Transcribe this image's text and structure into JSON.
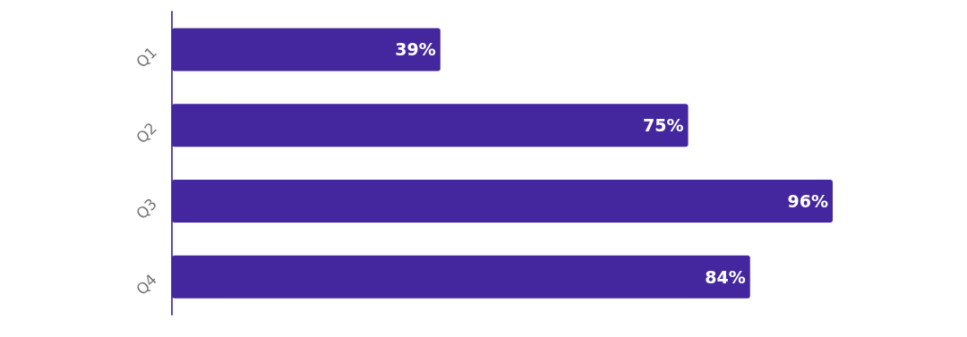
{
  "chart_data": {
    "type": "bar",
    "orientation": "horizontal",
    "categories": [
      "Q1",
      "Q2",
      "Q3",
      "Q4"
    ],
    "series": [
      {
        "color": "#44279f",
        "values": [
          39,
          75,
          96,
          84
        ],
        "value_labels": [
          "39%",
          "75%",
          "96%",
          "84%"
        ]
      }
    ]
  }
}
